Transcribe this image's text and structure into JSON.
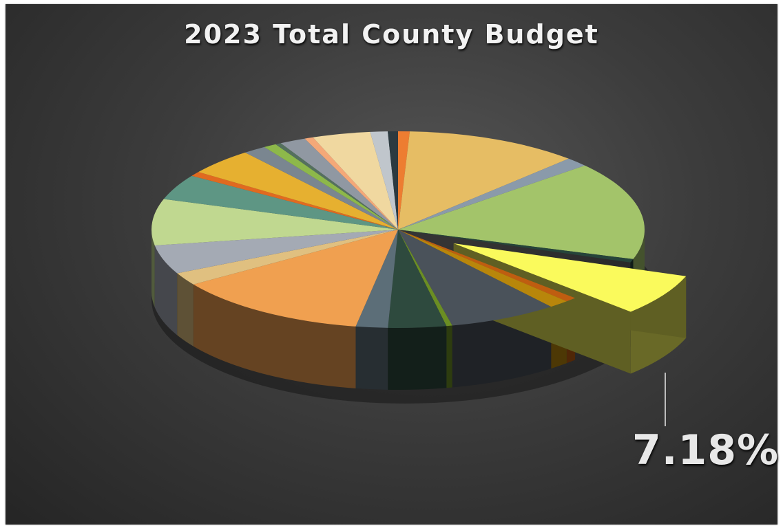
{
  "chart_data": {
    "type": "pie",
    "style": "3d-exploded",
    "title": "2023 Total County Budget",
    "slices": [
      {
        "value": 0.8,
        "color": "#ed7d31"
      },
      {
        "value": 12.0,
        "color": "#e6bd64"
      },
      {
        "value": 1.6,
        "color": "#8a9aaa"
      },
      {
        "value": 17.0,
        "color": "#a3c46a"
      },
      {
        "value": 0.6,
        "color": "#26443a"
      },
      {
        "value": 7.18,
        "color": "#fafa5c",
        "exploded": true,
        "label": "7.18%"
      },
      {
        "value": 0.8,
        "color": "#bf5d10"
      },
      {
        "value": 1.4,
        "color": "#b8860b"
      },
      {
        "value": 7.5,
        "color": "#4a525a"
      },
      {
        "value": 0.4,
        "color": "#6b8e23"
      },
      {
        "value": 4.0,
        "color": "#2e4a3e"
      },
      {
        "value": 2.2,
        "color": "#5c6e78"
      },
      {
        "value": 13.5,
        "color": "#f0a050"
      },
      {
        "value": 2.2,
        "color": "#e0c080"
      },
      {
        "value": 5.0,
        "color": "#a4aab4"
      },
      {
        "value": 8.0,
        "color": "#c0d890"
      },
      {
        "value": 4.4,
        "color": "#5e9684"
      },
      {
        "value": 0.8,
        "color": "#e06a20"
      },
      {
        "value": 4.6,
        "color": "#e6b030"
      },
      {
        "value": 1.6,
        "color": "#7a8690"
      },
      {
        "value": 0.9,
        "color": "#8db84a"
      },
      {
        "value": 0.4,
        "color": "#54705e"
      },
      {
        "value": 1.8,
        "color": "#9098a2"
      },
      {
        "value": 0.6,
        "color": "#f4a878"
      },
      {
        "value": 4.0,
        "color": "#f0d8a0"
      },
      {
        "value": 1.2,
        "color": "#c0c6cc"
      },
      {
        "value": 0.7,
        "color": "#2c3a40"
      }
    ]
  }
}
